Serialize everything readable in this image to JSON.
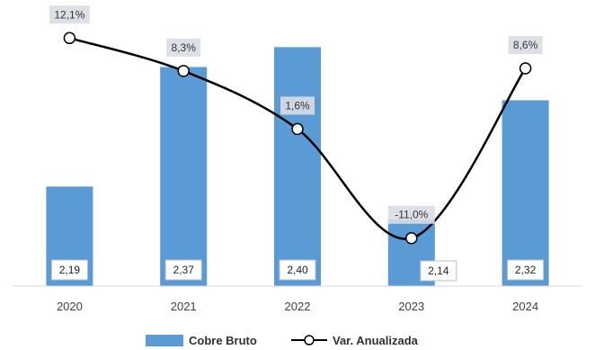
{
  "chart_data": {
    "type": "bar+line",
    "categories": [
      "2020",
      "2021",
      "2022",
      "2023",
      "2024"
    ],
    "series": [
      {
        "name": "Cobre Bruto",
        "type": "bar",
        "color": "#5B9BD5",
        "values": [
          2.19,
          2.37,
          2.4,
          2.14,
          2.32
        ],
        "labels": [
          "2,19",
          "2,37",
          "2,40",
          "2,14",
          "2,32"
        ]
      },
      {
        "name": "Var. Anualizada",
        "type": "line",
        "color": "#000000",
        "marker": "open-circle",
        "smooth": true,
        "values": [
          12.1,
          8.3,
          1.6,
          -11.0,
          8.6
        ],
        "labels": [
          "12,1%",
          "8,3%",
          "1,6%",
          "-11,0%",
          "8,6%"
        ]
      }
    ],
    "bar_axis": {
      "min": 2.04,
      "max": 2.41
    },
    "line_axis": {
      "min": -13.0,
      "max": 14.0
    },
    "axis_visible": false,
    "grid": false,
    "legend_position": "bottom"
  }
}
